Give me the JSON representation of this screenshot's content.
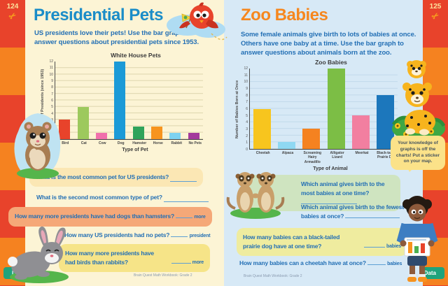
{
  "left_page": {
    "page_number": "124",
    "title": "Presidential Pets",
    "intro": "US presidents love their pets! Use the bar graph to answer questions about presidential pets since 1953.",
    "footer": "Brain Quest Math Workbook: Grade 2",
    "tab_label": "Data",
    "questions": [
      {
        "text": "What is the most common pet for US presidents?",
        "suffix": ""
      },
      {
        "text": "What is the second most common type of pet?",
        "suffix": ""
      },
      {
        "text": "How many more presidents have had dogs than hamsters?",
        "suffix": "more"
      },
      {
        "text": "How many US presidents had no pets?",
        "suffix": "president"
      },
      {
        "text": "How many more presidents have had birds than rabbits?",
        "suffix": "more"
      }
    ]
  },
  "right_page": {
    "page_number": "125",
    "title": "Zoo Babies",
    "intro": "Some female animals give birth to lots of babies at once. Others have one baby at a time. Use the bar graph to answer questions about animals born at the zoo.",
    "footer": "Brain Quest Math Workbook: Grade 2",
    "tab_label": "Data",
    "sticker_note": "Your knowledge of graphs is off the charts! Put a sticker on your map.",
    "questions": [
      {
        "text": "Which animal gives birth to the most babies at one time?",
        "suffix": ""
      },
      {
        "text": "Which animal gives birth to the fewest babies at once?",
        "suffix": ""
      },
      {
        "text": "How many babies can a black-tailed prairie dog have at one time?",
        "suffix": "babies"
      },
      {
        "text": "How many babies can a cheetah have at once?",
        "suffix": "babies"
      }
    ]
  },
  "chart_data": [
    {
      "type": "bar",
      "title": "White House Pets",
      "xlabel": "Type of Pet",
      "ylabel": "Number of Presidents (since 1953)",
      "categories": [
        "Bird",
        "Cat",
        "Cow",
        "Dog",
        "Hamster",
        "Horse",
        "Rabbit",
        "No Pets"
      ],
      "values": [
        3,
        5,
        1,
        12,
        2,
        2,
        1,
        1
      ],
      "colors": [
        "#E8432B",
        "#9DC95D",
        "#F170AC",
        "#1B9AD7",
        "#2FA35B",
        "#F7941E",
        "#7DD2F0",
        "#A43A9C"
      ],
      "ylim": [
        0,
        12
      ],
      "grid": true,
      "legend": "none"
    },
    {
      "type": "bar",
      "title": "Zoo Babies",
      "xlabel": "Type of Animal",
      "ylabel": "Number of Babies Born at Once",
      "categories": [
        "Cheetah",
        "Alpaca",
        "Screaming\nHairy Armadillo",
        "Alligator\nLizard",
        "Meerkat",
        "Black-tailed\nPrairie Dog"
      ],
      "values": [
        6,
        1,
        3,
        12,
        5,
        8
      ],
      "colors": [
        "#F7C51E",
        "#8FD8F2",
        "#F58220",
        "#7CBE45",
        "#F27FA0",
        "#1C77BC"
      ],
      "ylim": [
        0,
        12
      ],
      "grid": true,
      "legend": "none"
    }
  ],
  "colors": {
    "left_page_bg": "#FCF4D5",
    "right_page_bg": "#D7E9F6",
    "strip_red": "#E8432B",
    "strip_orange": "#F58220",
    "left_title": "#1B8DC8",
    "right_title": "#F6871E",
    "text_blue": "#2470B5",
    "data_tab_green": "#1FA37C",
    "q_box_apricot": "#FBE7B4",
    "q_box_salmon": "#F5A878",
    "q_box_yellow": "#F6E488",
    "q_box_green": "#CFE4C0",
    "q_box_paleyellow": "#EFEC9F"
  }
}
